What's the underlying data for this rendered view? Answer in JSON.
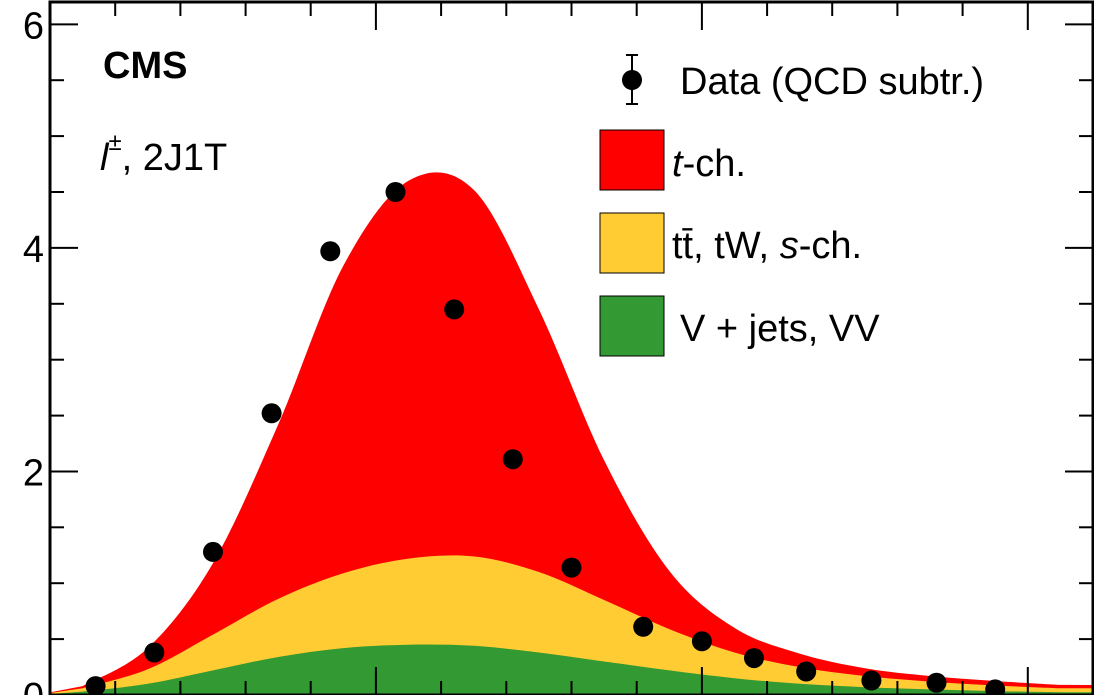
{
  "chart_data": {
    "type": "area",
    "experiment_label": "CMS",
    "channel": {
      "lepton": "l",
      "charge": "±",
      "selection": ", 2J1T"
    },
    "ylim": [
      0,
      6.2
    ],
    "yticks": [
      "0",
      "2",
      "4",
      "6"
    ],
    "xlabel": "",
    "ylabel": "",
    "x": [
      -0.45,
      -0.35,
      -0.25,
      -0.15,
      -0.05,
      0.05,
      0.15,
      0.25,
      0.35,
      0.45,
      0.55,
      0.65,
      0.75,
      0.85,
      0.95,
      1.05
    ],
    "series": [
      {
        "name": "V + jets, VV",
        "color": "#339933",
        "values": [
          0.03,
          0.1,
          0.22,
          0.34,
          0.42,
          0.45,
          0.44,
          0.38,
          0.3,
          0.22,
          0.15,
          0.1,
          0.07,
          0.05,
          0.035,
          0.025
        ]
      },
      {
        "name": "tt̄, tW, s-ch.",
        "color": "#ffcc33",
        "values": [
          0.03,
          0.13,
          0.32,
          0.52,
          0.67,
          0.77,
          0.8,
          0.72,
          0.55,
          0.37,
          0.23,
          0.15,
          0.1,
          0.07,
          0.05,
          0.035
        ]
      },
      {
        "name": "t-ch.",
        "color": "#ff0000",
        "values": [
          0.02,
          0.19,
          0.64,
          1.56,
          2.75,
          3.38,
          3.28,
          2.35,
          1.25,
          0.52,
          0.22,
          0.12,
          0.07,
          0.05,
          0.04,
          0.03
        ]
      }
    ],
    "data_points": {
      "name": "Data (QCD subtr.)",
      "x": [
        -0.43,
        -0.34,
        -0.25,
        -0.16,
        -0.07,
        0.03,
        0.12,
        0.21,
        0.3,
        0.41,
        0.5,
        0.58,
        0.66,
        0.76,
        0.86,
        0.95
      ],
      "y": [
        0.08,
        0.38,
        1.28,
        2.52,
        3.97,
        4.5,
        3.45,
        2.11,
        1.14,
        0.61,
        0.48,
        0.33,
        0.21,
        0.13,
        0.11,
        0.05
      ]
    },
    "legend": {
      "position": "top-right",
      "entries": [
        {
          "label": "Data (QCD subtr.)",
          "style": "marker"
        },
        {
          "label_italic": "t",
          "label_rest": "-ch.",
          "color": "#ff0000"
        },
        {
          "label_pre": "tt̄, tW, ",
          "label_italic": "s",
          "label_rest": "-ch.",
          "color": "#ffcc33"
        },
        {
          "label_rest": "V + jets, VV",
          "color": "#339933"
        }
      ]
    },
    "grid": false
  }
}
